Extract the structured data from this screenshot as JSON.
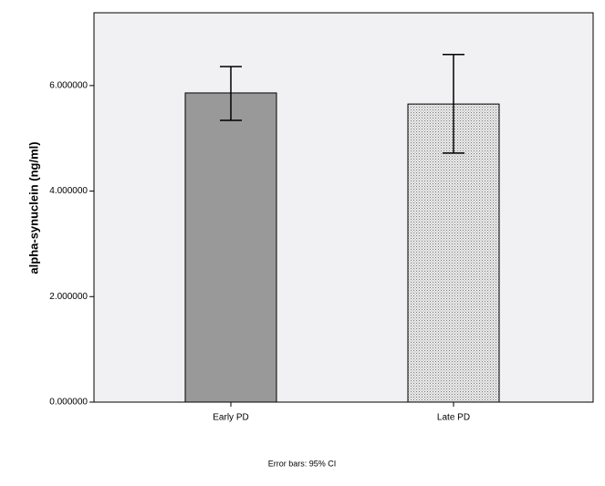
{
  "chart_data": {
    "type": "bar",
    "y_label": "alpha-synuclein (ng/ml)",
    "note": "Error bars: 95% CI",
    "categories": [
      "Early PD",
      "Late PD"
    ],
    "values": [
      5.86,
      5.65
    ],
    "ci_low": [
      5.34,
      4.72
    ],
    "ci_high": [
      6.36,
      6.59
    ],
    "colors": [
      "#999999",
      "#e6e6e6"
    ],
    "hatch": [
      false,
      true
    ],
    "ylim": [
      0,
      7.38
    ],
    "yticks": [
      {
        "value": 0,
        "label": "0.000000"
      },
      {
        "value": 2,
        "label": "2.000000"
      },
      {
        "value": 4,
        "label": "4.000000"
      },
      {
        "value": 6,
        "label": "6.000000"
      }
    ]
  }
}
